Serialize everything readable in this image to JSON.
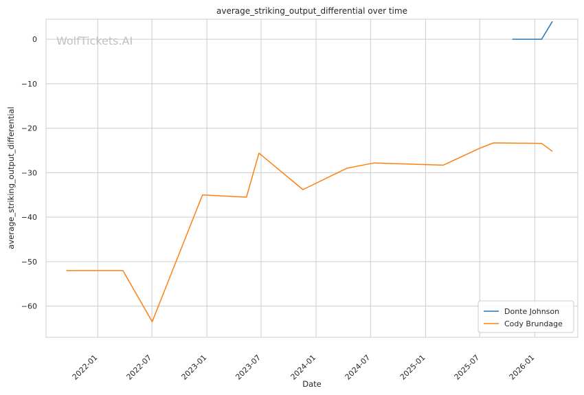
{
  "watermark": "WolfTickets.AI",
  "chart_data": {
    "type": "line",
    "title": "average_striking_output_differential over time",
    "xlabel": "Date",
    "ylabel": "average_striking_output_differential",
    "x_ticks": [
      "2022-01",
      "2022-07",
      "2023-01",
      "2023-07",
      "2024-01",
      "2024-07",
      "2025-01",
      "2025-07",
      "2026-01"
    ],
    "y_ticks": [
      0,
      -10,
      -20,
      -30,
      -40,
      -50,
      -60
    ],
    "xlim": [
      "2021-07-12",
      "2026-05-25"
    ],
    "ylim": [
      -67,
      4.5
    ],
    "grid": true,
    "legend_position": "lower-right",
    "series": [
      {
        "name": "Donte Johnson",
        "color": "#1f77b4",
        "points": [
          [
            "2025-10-18",
            0
          ],
          [
            "2026-01-24",
            0
          ],
          [
            "2026-03-01",
            4
          ]
        ]
      },
      {
        "name": "Cody Brundage",
        "color": "#ff7f0e",
        "points": [
          [
            "2021-09-18",
            -52
          ],
          [
            "2022-03-26",
            -52
          ],
          [
            "2022-07-02",
            -63.5
          ],
          [
            "2022-12-17",
            -35
          ],
          [
            "2023-05-13",
            -35.5
          ],
          [
            "2023-06-24",
            -25.6
          ],
          [
            "2023-11-18",
            -33.8
          ],
          [
            "2024-04-13",
            -29
          ],
          [
            "2024-07-13",
            -27.8
          ],
          [
            "2025-03-01",
            -28.3
          ],
          [
            "2025-07-01",
            -24.5
          ],
          [
            "2025-08-16",
            -23.3
          ],
          [
            "2026-01-24",
            -23.4
          ],
          [
            "2026-03-01",
            -25.2
          ]
        ]
      }
    ]
  }
}
